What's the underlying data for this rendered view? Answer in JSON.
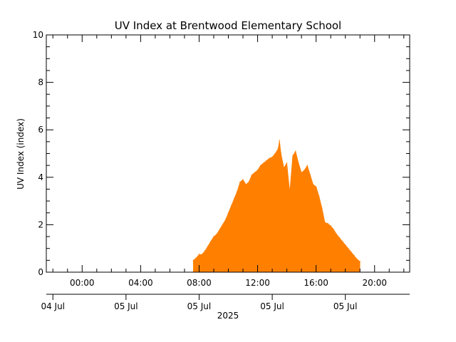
{
  "chart_data": {
    "type": "area",
    "title": "UV Index at Brentwood Elementary School",
    "ylabel": "UV Index (index)",
    "xlabel": "",
    "ylim": [
      0,
      10
    ],
    "xlim_hours": [
      -2.45,
      22.4
    ],
    "y_ticks": [
      "0",
      "2",
      "4",
      "6",
      "8",
      "10"
    ],
    "x_time_ticks": [
      {
        "hour": 0,
        "label": "00:00"
      },
      {
        "hour": 4,
        "label": "04:00"
      },
      {
        "hour": 8,
        "label": "08:00"
      },
      {
        "hour": 12,
        "label": "12:00"
      },
      {
        "hour": 16,
        "label": "16:00"
      },
      {
        "hour": 20,
        "label": "20:00"
      }
    ],
    "x_date_ticks": [
      {
        "hour": -2,
        "label": "04 Jul"
      },
      {
        "hour": 3,
        "label": "05 Jul"
      },
      {
        "hour": 8,
        "label": "05 Jul"
      },
      {
        "hour": 13,
        "label": "05 Jul"
      },
      {
        "hour": 18,
        "label": "05 Jul"
      }
    ],
    "year_label": "2025",
    "series": [
      {
        "color": "#ff8000",
        "x_hours": [
          7.6,
          7.8,
          8.0,
          8.2,
          8.4,
          8.6,
          8.8,
          9.0,
          9.2,
          9.4,
          9.6,
          9.8,
          10.0,
          10.2,
          10.4,
          10.6,
          10.8,
          11.0,
          11.2,
          11.4,
          11.6,
          11.8,
          12.0,
          12.2,
          12.4,
          12.6,
          12.8,
          13.0,
          13.2,
          13.4,
          13.5,
          13.6,
          13.8,
          14.0,
          14.2,
          14.4,
          14.6,
          14.8,
          15.0,
          15.2,
          15.4,
          15.6,
          15.8,
          16.0,
          16.2,
          16.4,
          16.6,
          16.8,
          17.0,
          17.2,
          17.4,
          17.6,
          17.8,
          18.0,
          18.2,
          18.4,
          18.6,
          18.8,
          19.0
        ],
        "values": [
          0.5,
          0.6,
          0.75,
          0.75,
          0.9,
          1.1,
          1.3,
          1.5,
          1.6,
          1.8,
          2.0,
          2.2,
          2.5,
          2.8,
          3.1,
          3.4,
          3.8,
          3.9,
          3.7,
          3.8,
          4.1,
          4.2,
          4.3,
          4.5,
          4.6,
          4.7,
          4.8,
          4.85,
          5.0,
          5.2,
          5.55,
          5.0,
          4.4,
          4.6,
          3.4,
          4.9,
          5.1,
          4.6,
          4.2,
          4.3,
          4.5,
          4.1,
          3.7,
          3.6,
          3.2,
          2.7,
          2.1,
          2.05,
          1.95,
          1.8,
          1.6,
          1.45,
          1.3,
          1.15,
          1.0,
          0.85,
          0.7,
          0.55,
          0.45
        ]
      }
    ]
  }
}
